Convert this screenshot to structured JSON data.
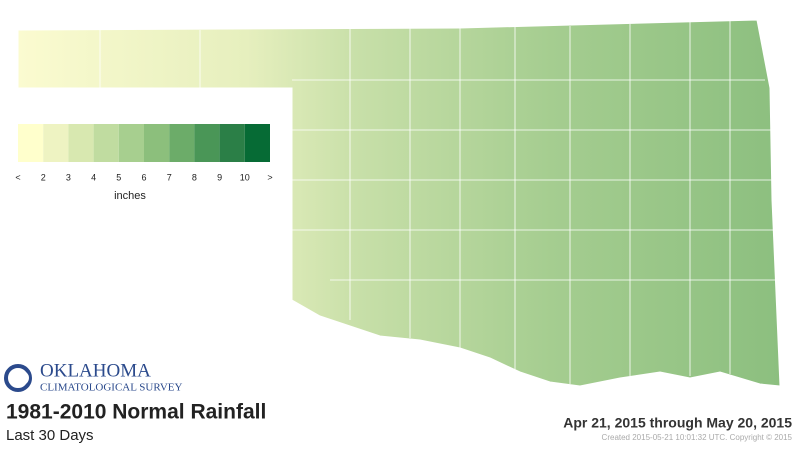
{
  "logo": {
    "name": "Oklahoma",
    "subname": "Climatological Survey"
  },
  "title": "1981-2010 Normal Rainfall",
  "subtitle": "Last 30 Days",
  "date_range": "Apr 21, 2015 through May 20, 2015",
  "credit": "Created 2015-05-21 10:01:32 UTC. Copyright © 2015",
  "legend": {
    "colors": [
      "#ffffcc",
      "#eef3c2",
      "#d8e8b0",
      "#c0dca0",
      "#a7cf8f",
      "#8cbf7c",
      "#6cac69",
      "#4a9657",
      "#2b7f47",
      "#066b35"
    ],
    "labels": [
      "<",
      "2",
      "3",
      "4",
      "5",
      "6",
      "7",
      "8",
      "9",
      "10",
      ">"
    ],
    "unit": "inches"
  }
}
